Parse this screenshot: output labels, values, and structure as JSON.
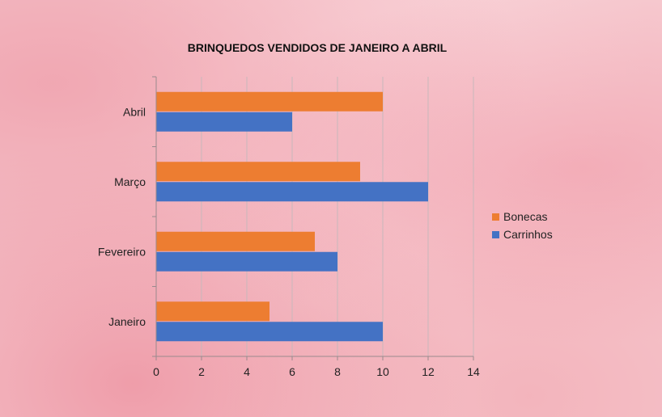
{
  "chart_data": {
    "type": "bar",
    "orientation": "horizontal",
    "title": "BRINQUEDOS VENDIDOS DE JANEIRO A ABRIL",
    "categories": [
      "Janeiro",
      "Fevereiro",
      "Março",
      "Abril"
    ],
    "series": [
      {
        "name": "Bonecas",
        "values": [
          5,
          7,
          9,
          10
        ],
        "color": "#ed7d31"
      },
      {
        "name": "Carrinhos",
        "values": [
          10,
          8,
          12,
          6
        ],
        "color": "#4472c4"
      }
    ],
    "xlim": [
      0,
      14
    ],
    "xticks": [
      0,
      2,
      4,
      6,
      8,
      10,
      12,
      14
    ],
    "grid": true,
    "legend_position": "right"
  }
}
